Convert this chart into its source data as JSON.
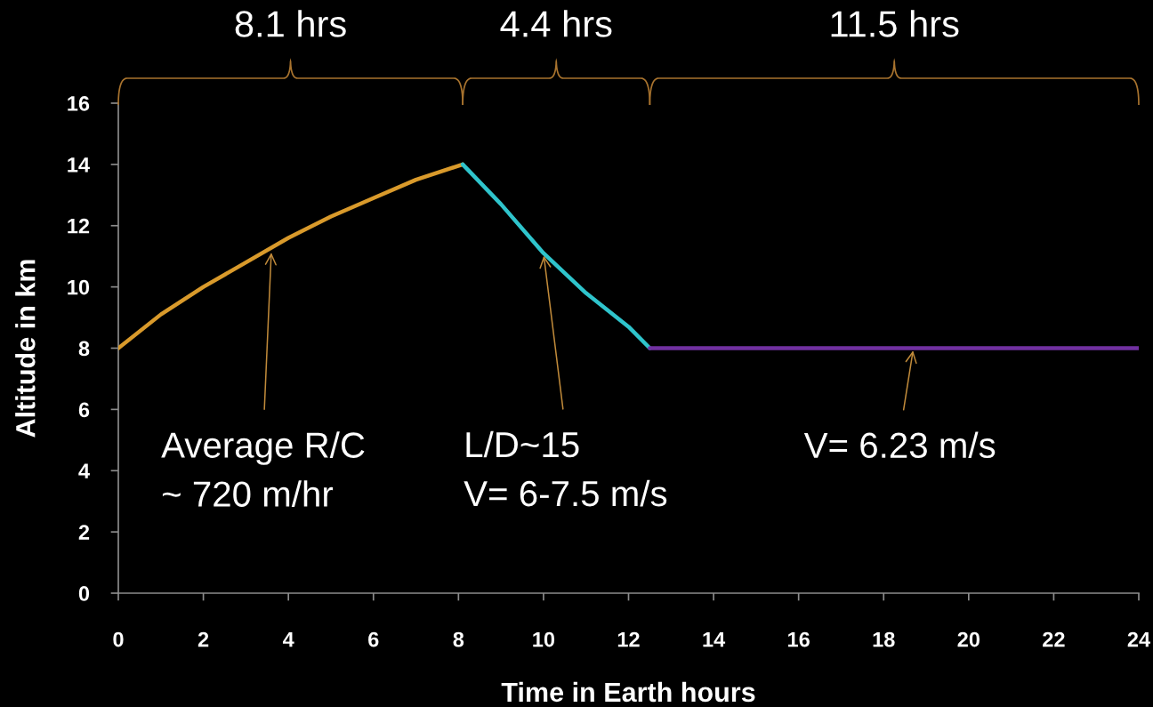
{
  "chart_data": {
    "type": "line",
    "xlabel": "Time in Earth hours",
    "ylabel": "Altitude in km",
    "xlim": [
      0,
      24
    ],
    "ylim": [
      0,
      16
    ],
    "xticks": [
      0,
      2,
      4,
      6,
      8,
      10,
      12,
      14,
      16,
      18,
      20,
      22,
      24
    ],
    "yticks": [
      0,
      2,
      4,
      6,
      8,
      10,
      12,
      14,
      16
    ],
    "marker": "none",
    "line_style": "solid",
    "series": [
      {
        "color": "#d99a2b",
        "x": [
          0,
          1,
          2,
          3,
          4,
          5,
          6,
          7,
          8.1
        ],
        "values": [
          8,
          9.1,
          10.0,
          10.8,
          11.6,
          12.3,
          12.9,
          13.5,
          14
        ]
      },
      {
        "color": "#2fc4cc",
        "x": [
          8.1,
          9,
          10,
          11,
          12,
          12.5
        ],
        "values": [
          14,
          12.7,
          11.1,
          9.8,
          8.7,
          8
        ]
      },
      {
        "color": "#7030a0",
        "x": [
          12.5,
          24
        ],
        "values": [
          8,
          8
        ]
      }
    ],
    "annotations": [
      "8.1 hrs",
      "4.4 hrs",
      "11.5 hrs",
      {
        "text": "Average R/C\n~ 720 m/hr",
        "x": 3.6,
        "y": 11.2
      },
      {
        "text": "L/D~15\nV= 6-7.5 m/s",
        "x": 10,
        "y": 11.1
      },
      {
        "text": "V= 6.23 m/s",
        "x": 18.7,
        "y": 8
      }
    ]
  }
}
